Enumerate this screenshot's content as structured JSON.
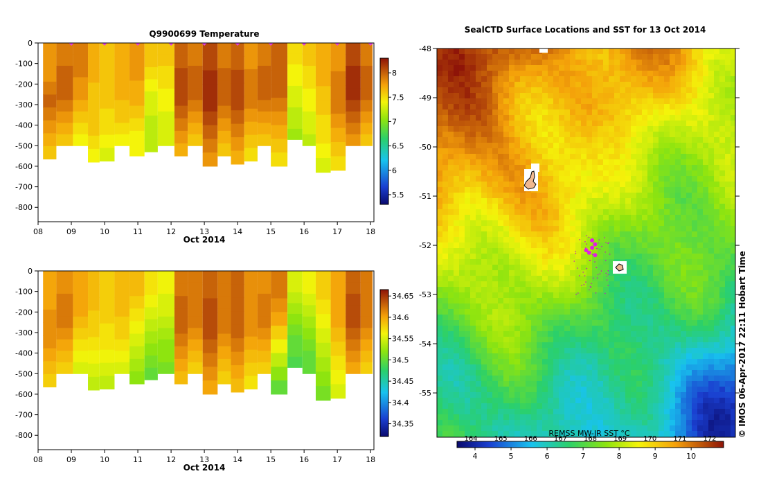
{
  "chart_data": [
    {
      "id": "temperature_section",
      "type": "heatmap",
      "title": "Q9900699  Temperature",
      "xlabel": "Oct 2014",
      "x_ticks": [
        "08",
        "09",
        "10",
        "11",
        "12",
        "13",
        "14",
        "15",
        "16",
        "17",
        "18"
      ],
      "y_ticks": [
        "0",
        "-100",
        "-200",
        "-300",
        "-400",
        "-500",
        "-600",
        "-700",
        "-800"
      ],
      "xlim": [
        8,
        18.1
      ],
      "ylim": [
        -870,
        0
      ],
      "colorbar_ticks": [
        "5.5",
        "6",
        "6.5",
        "7",
        "7.5",
        "8"
      ],
      "colorbar_range": [
        5.3,
        8.3
      ],
      "profiles": [
        {
          "day": 8.15,
          "depth": -565,
          "values": [
            7.8,
            7.8,
            7.8,
            7.9,
            8.0,
            7.9,
            7.8,
            7.7,
            7.6
          ]
        },
        {
          "day": 8.55,
          "depth": -500,
          "values": [
            7.9,
            7.9,
            8.0,
            8.0,
            8.0,
            7.9,
            7.8,
            7.7,
            7.6
          ]
        },
        {
          "day": 9.05,
          "depth": -500,
          "values": [
            7.9,
            7.9,
            7.9,
            7.8,
            7.8,
            7.7,
            7.6,
            7.5,
            7.4
          ]
        },
        {
          "day": 9.5,
          "depth": -580,
          "values": [
            7.7,
            7.7,
            7.7,
            7.6,
            7.6,
            7.6,
            7.6,
            7.5,
            7.4
          ]
        },
        {
          "day": 9.85,
          "depth": -575,
          "values": [
            7.6,
            7.6,
            7.6,
            7.6,
            7.6,
            7.5,
            7.5,
            7.4,
            7.3
          ]
        },
        {
          "day": 10.3,
          "depth": -500,
          "values": [
            7.7,
            7.7,
            7.7,
            7.7,
            7.7,
            7.6,
            7.6,
            7.5,
            7.4
          ]
        },
        {
          "day": 10.75,
          "depth": -550,
          "values": [
            7.8,
            7.8,
            7.8,
            7.7,
            7.7,
            7.6,
            7.5,
            7.4,
            7.4
          ]
        },
        {
          "day": 11.2,
          "depth": -530,
          "values": [
            7.6,
            7.6,
            7.5,
            7.4,
            7.3,
            7.3,
            7.2,
            7.2,
            7.2
          ]
        },
        {
          "day": 11.6,
          "depth": -500,
          "values": [
            7.6,
            7.6,
            7.5,
            7.5,
            7.4,
            7.4,
            7.3,
            7.3,
            7.3
          ]
        },
        {
          "day": 12.1,
          "depth": -550,
          "values": [
            8.0,
            8.0,
            8.1,
            8.1,
            8.1,
            8.0,
            7.9,
            7.8,
            7.7
          ]
        },
        {
          "day": 12.5,
          "depth": -500,
          "values": [
            7.9,
            7.9,
            8.0,
            8.0,
            8.0,
            7.9,
            7.8,
            7.7,
            7.6
          ]
        },
        {
          "day": 12.95,
          "depth": -600,
          "values": [
            8.1,
            8.1,
            8.2,
            8.2,
            8.2,
            8.1,
            8.0,
            7.9,
            7.8
          ]
        },
        {
          "day": 13.4,
          "depth": -550,
          "values": [
            7.9,
            7.9,
            8.0,
            8.0,
            8.0,
            7.9,
            7.8,
            7.7,
            7.6
          ]
        },
        {
          "day": 13.8,
          "depth": -590,
          "values": [
            8.0,
            8.0,
            8.1,
            8.1,
            8.1,
            8.0,
            7.9,
            7.8,
            7.7
          ]
        },
        {
          "day": 14.2,
          "depth": -575,
          "values": [
            7.8,
            7.8,
            7.9,
            7.9,
            7.9,
            7.8,
            7.7,
            7.6,
            7.5
          ]
        },
        {
          "day": 14.6,
          "depth": -500,
          "values": [
            7.9,
            7.9,
            8.0,
            8.0,
            8.0,
            7.9,
            7.8,
            7.7,
            7.6
          ]
        },
        {
          "day": 15.0,
          "depth": -600,
          "values": [
            8.0,
            8.0,
            8.0,
            8.0,
            7.9,
            7.8,
            7.7,
            7.6,
            7.5
          ]
        },
        {
          "day": 15.5,
          "depth": -470,
          "values": [
            7.5,
            7.5,
            7.4,
            7.4,
            7.3,
            7.3,
            7.2,
            7.2,
            7.1
          ]
        },
        {
          "day": 15.95,
          "depth": -500,
          "values": [
            7.6,
            7.6,
            7.5,
            7.5,
            7.4,
            7.4,
            7.3,
            7.3,
            7.2
          ]
        },
        {
          "day": 16.35,
          "depth": -630,
          "values": [
            7.7,
            7.7,
            7.7,
            7.6,
            7.6,
            7.5,
            7.5,
            7.4,
            7.3
          ]
        },
        {
          "day": 16.8,
          "depth": -620,
          "values": [
            7.8,
            7.8,
            7.9,
            7.9,
            7.9,
            7.8,
            7.7,
            7.6,
            7.5
          ]
        },
        {
          "day": 17.25,
          "depth": -500,
          "values": [
            8.1,
            8.1,
            8.2,
            8.2,
            8.2,
            8.1,
            8.0,
            7.9,
            7.8
          ]
        },
        {
          "day": 17.7,
          "depth": -500,
          "values": [
            7.9,
            7.9,
            8.0,
            8.0,
            8.0,
            7.9,
            7.8,
            7.7,
            7.6
          ]
        }
      ],
      "surface_markers": [
        9.0,
        10.0,
        11.0,
        12.0,
        13.0,
        14.0,
        15.0,
        16.0,
        17.0,
        18.0
      ]
    },
    {
      "id": "salinity_section",
      "type": "heatmap",
      "title": "",
      "xlabel": "Oct 2014",
      "x_ticks": [
        "08",
        "09",
        "10",
        "11",
        "12",
        "13",
        "14",
        "15",
        "16",
        "17",
        "18"
      ],
      "y_ticks": [
        "0",
        "-100",
        "-200",
        "-300",
        "-400",
        "-500",
        "-600",
        "-700",
        "-800"
      ],
      "xlim": [
        8,
        18.1
      ],
      "ylim": [
        -870,
        0
      ],
      "colorbar_ticks": [
        "34.35",
        "34.4",
        "34.45",
        "34.5",
        "34.55",
        "34.6",
        "34.65"
      ],
      "colorbar_range": [
        34.32,
        34.665
      ],
      "profiles": [
        {
          "day": 8.15,
          "depth": -565,
          "values": [
            34.6,
            34.6,
            34.6,
            34.61,
            34.61,
            34.61,
            34.6,
            34.59,
            34.58
          ]
        },
        {
          "day": 8.55,
          "depth": -500,
          "values": [
            34.61,
            34.61,
            34.62,
            34.62,
            34.62,
            34.61,
            34.6,
            34.59,
            34.58
          ]
        },
        {
          "day": 9.05,
          "depth": -500,
          "values": [
            34.6,
            34.6,
            34.6,
            34.6,
            34.59,
            34.58,
            34.57,
            34.56,
            34.55
          ]
        },
        {
          "day": 9.5,
          "depth": -580,
          "values": [
            34.59,
            34.59,
            34.59,
            34.58,
            34.58,
            34.57,
            34.56,
            34.55,
            34.54
          ]
        },
        {
          "day": 9.85,
          "depth": -575,
          "values": [
            34.58,
            34.58,
            34.58,
            34.58,
            34.57,
            34.57,
            34.56,
            34.55,
            34.54
          ]
        },
        {
          "day": 10.3,
          "depth": -500,
          "values": [
            34.59,
            34.59,
            34.59,
            34.59,
            34.58,
            34.58,
            34.57,
            34.56,
            34.55
          ]
        },
        {
          "day": 10.75,
          "depth": -550,
          "values": [
            34.59,
            34.59,
            34.58,
            34.57,
            34.56,
            34.55,
            34.54,
            34.53,
            34.52
          ]
        },
        {
          "day": 11.2,
          "depth": -530,
          "values": [
            34.57,
            34.57,
            34.56,
            34.55,
            34.54,
            34.53,
            34.52,
            34.51,
            34.5
          ]
        },
        {
          "day": 11.6,
          "depth": -500,
          "values": [
            34.56,
            34.56,
            34.55,
            34.55,
            34.54,
            34.53,
            34.52,
            34.52,
            34.51
          ]
        },
        {
          "day": 12.1,
          "depth": -550,
          "values": [
            34.62,
            34.62,
            34.63,
            34.63,
            34.63,
            34.62,
            34.61,
            34.6,
            34.59
          ]
        },
        {
          "day": 12.5,
          "depth": -500,
          "values": [
            34.62,
            34.62,
            34.62,
            34.62,
            34.62,
            34.61,
            34.6,
            34.59,
            34.58
          ]
        },
        {
          "day": 12.95,
          "depth": -600,
          "values": [
            34.63,
            34.63,
            34.64,
            34.64,
            34.64,
            34.63,
            34.62,
            34.61,
            34.6
          ]
        },
        {
          "day": 13.4,
          "depth": -550,
          "values": [
            34.62,
            34.62,
            34.62,
            34.62,
            34.62,
            34.61,
            34.6,
            34.59,
            34.58
          ]
        },
        {
          "day": 13.8,
          "depth": -590,
          "values": [
            34.63,
            34.63,
            34.63,
            34.63,
            34.63,
            34.62,
            34.61,
            34.6,
            34.59
          ]
        },
        {
          "day": 14.2,
          "depth": -575,
          "values": [
            34.61,
            34.61,
            34.61,
            34.61,
            34.61,
            34.6,
            34.59,
            34.58,
            34.57
          ]
        },
        {
          "day": 14.6,
          "depth": -500,
          "values": [
            34.61,
            34.61,
            34.62,
            34.62,
            34.62,
            34.61,
            34.6,
            34.59,
            34.58
          ]
        },
        {
          "day": 15.0,
          "depth": -600,
          "values": [
            34.62,
            34.62,
            34.61,
            34.6,
            34.58,
            34.56,
            34.54,
            34.52,
            34.5
          ]
        },
        {
          "day": 15.5,
          "depth": -470,
          "values": [
            34.55,
            34.55,
            34.54,
            34.53,
            34.52,
            34.51,
            34.5,
            34.5,
            34.49
          ]
        },
        {
          "day": 15.95,
          "depth": -500,
          "values": [
            34.56,
            34.56,
            34.55,
            34.54,
            34.53,
            34.52,
            34.51,
            34.5,
            34.5
          ]
        },
        {
          "day": 16.35,
          "depth": -630,
          "values": [
            34.58,
            34.58,
            34.57,
            34.56,
            34.55,
            34.54,
            34.53,
            34.52,
            34.51
          ]
        },
        {
          "day": 16.8,
          "depth": -620,
          "values": [
            34.6,
            34.6,
            34.6,
            34.6,
            34.59,
            34.58,
            34.57,
            34.56,
            34.55
          ]
        },
        {
          "day": 17.25,
          "depth": -500,
          "values": [
            34.63,
            34.63,
            34.64,
            34.64,
            34.64,
            34.63,
            34.62,
            34.61,
            34.6
          ]
        },
        {
          "day": 17.7,
          "depth": -500,
          "values": [
            34.62,
            34.62,
            34.62,
            34.62,
            34.62,
            34.61,
            34.6,
            34.59,
            34.58
          ]
        }
      ]
    },
    {
      "id": "sst_map",
      "type": "heatmap",
      "title": "SealCTD Surface Locations and SST for 13 Oct 2014",
      "y_ticks": [
        "-48",
        "-49",
        "-50",
        "-51",
        "-52",
        "-53",
        "-54",
        "-55"
      ],
      "ylim": [
        -55.9,
        -48
      ],
      "colorbar_label": "REMSS MW-IR SST °C",
      "colorbar_ticks": [
        "4",
        "5",
        "6",
        "7",
        "8",
        "9",
        "10"
      ],
      "colorbar_top_ticks": [
        "164",
        "165",
        "166",
        "167",
        "168",
        "169",
        "170",
        "171",
        "172"
      ],
      "colorbar_range": [
        3.5,
        10.9
      ],
      "sst_min": 4.6,
      "sst_max": 10.4,
      "surface_locations": [
        {
          "lon_frac": 0.52,
          "lat": -52.05
        },
        {
          "lon_frac": 0.53,
          "lat": -51.98
        },
        {
          "lon_frac": 0.5,
          "lat": -52.1
        },
        {
          "lon_frac": 0.51,
          "lat": -52.15
        },
        {
          "lon_frac": 0.52,
          "lat": -51.9
        },
        {
          "lon_frac": 0.53,
          "lat": -52.2
        }
      ],
      "credit": "©  IMOS 06-Apr-2017 22:11 Hobart Time"
    }
  ]
}
